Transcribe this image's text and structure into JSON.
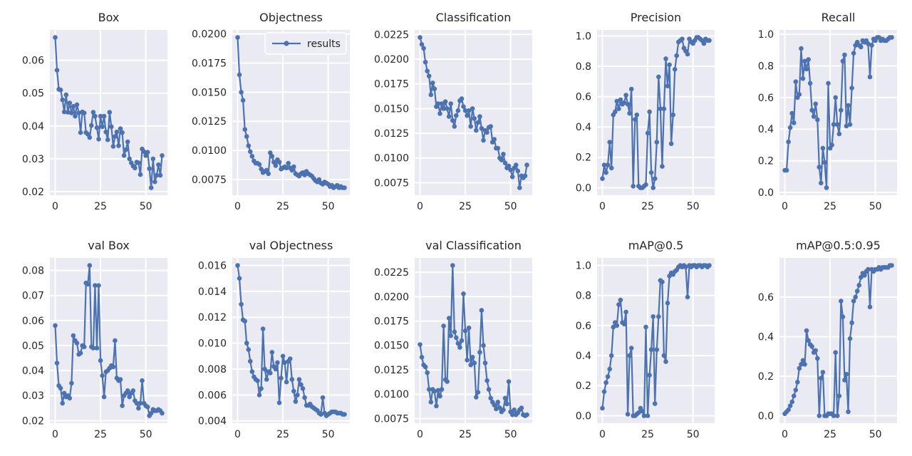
{
  "figure": {
    "background": "#ffffff",
    "axes_background": "#eaeaf2",
    "grid_color": "#ffffff",
    "line_color": "#4c72b0",
    "text_color": "#262626",
    "legend_label": "results"
  },
  "chart_data": [
    {
      "type": "line",
      "title": "Box",
      "series_name": "results",
      "has_legend": false,
      "xticks": [
        0,
        25,
        50
      ],
      "xtick_labels": [
        "0",
        "25",
        "50"
      ],
      "ytick_labels": [
        "0.02",
        "0.03",
        "0.04",
        "0.05",
        "0.06"
      ],
      "values": [
        0.067,
        0.057,
        0.0512,
        0.051,
        0.048,
        0.0443,
        0.0495,
        0.0442,
        0.047,
        0.044,
        0.046,
        0.043,
        0.0465,
        0.044,
        0.038,
        0.0443,
        0.044,
        0.038,
        0.0375,
        0.0365,
        0.0402,
        0.0442,
        0.043,
        0.0395,
        0.036,
        0.043,
        0.0398,
        0.043,
        0.0382,
        0.0358,
        0.0442,
        0.0398,
        0.0338,
        0.0368,
        0.0382,
        0.034,
        0.0392,
        0.038,
        0.031,
        0.0328,
        0.0352,
        0.03,
        0.0288,
        0.0278,
        0.0272,
        0.029,
        0.0288,
        0.0252,
        0.033,
        0.0322,
        0.031,
        0.032,
        0.027,
        0.0212,
        0.03,
        0.023,
        0.025,
        0.0282,
        0.025,
        0.031
      ]
    },
    {
      "type": "line",
      "title": "Objectness",
      "series_name": "results",
      "has_legend": true,
      "xticks": [
        0,
        25,
        50
      ],
      "xtick_labels": [
        "0",
        "25",
        "50"
      ],
      "ytick_labels": [
        "0.0075",
        "0.0100",
        "0.0125",
        "0.0150",
        "0.0175",
        "0.0200"
      ],
      "values": [
        0.0197,
        0.0165,
        0.015,
        0.0143,
        0.0118,
        0.0112,
        0.0104,
        0.0099,
        0.0095,
        0.0091,
        0.0089,
        0.0089,
        0.0088,
        0.0084,
        0.0081,
        0.0082,
        0.0083,
        0.008,
        0.0098,
        0.0095,
        0.009,
        0.0087,
        0.0092,
        0.009,
        0.0084,
        0.0085,
        0.0086,
        0.0085,
        0.0089,
        0.0085,
        0.0083,
        0.0086,
        0.008,
        0.0079,
        0.0078,
        0.008,
        0.0081,
        0.0079,
        0.0082,
        0.008,
        0.0079,
        0.0078,
        0.0076,
        0.0074,
        0.0073,
        0.0075,
        0.0072,
        0.0071,
        0.0073,
        0.0072,
        0.0071,
        0.0069,
        0.007,
        0.0068,
        0.0069,
        0.007,
        0.0068,
        0.0069,
        0.0068,
        0.0068
      ]
    },
    {
      "type": "line",
      "title": "Classification",
      "series_name": "results",
      "has_legend": false,
      "xticks": [
        0,
        25,
        50
      ],
      "xtick_labels": [
        "0",
        "25",
        "50"
      ],
      "ytick_labels": [
        "0.0075",
        "0.0100",
        "0.0125",
        "0.0150",
        "0.0175",
        "0.0200",
        "0.0225"
      ],
      "values": [
        0.0222,
        0.0215,
        0.0211,
        0.0197,
        0.0188,
        0.0183,
        0.0164,
        0.0176,
        0.017,
        0.0152,
        0.0155,
        0.0145,
        0.0155,
        0.015,
        0.0157,
        0.015,
        0.0142,
        0.0155,
        0.0138,
        0.0132,
        0.0143,
        0.0148,
        0.0158,
        0.016,
        0.0152,
        0.0148,
        0.0143,
        0.0148,
        0.0132,
        0.015,
        0.014,
        0.0128,
        0.0136,
        0.0142,
        0.013,
        0.0118,
        0.0128,
        0.0126,
        0.0131,
        0.0132,
        0.0116,
        0.0119,
        0.011,
        0.011,
        0.01,
        0.0098,
        0.0104,
        0.0095,
        0.009,
        0.0092,
        0.0088,
        0.0081,
        0.009,
        0.0093,
        0.0087,
        0.007,
        0.0082,
        0.008,
        0.0082,
        0.0093
      ]
    },
    {
      "type": "line",
      "title": "Precision",
      "series_name": "results",
      "has_legend": false,
      "xticks": [
        0,
        25,
        50
      ],
      "xtick_labels": [
        "0",
        "25",
        "50"
      ],
      "ytick_labels": [
        "0.0",
        "0.2",
        "0.4",
        "0.6",
        "0.8",
        "1.0"
      ],
      "values": [
        0.06,
        0.15,
        0.1,
        0.15,
        0.3,
        0.13,
        0.48,
        0.5,
        0.57,
        0.52,
        0.58,
        0.55,
        0.56,
        0.61,
        0.55,
        0.49,
        0.65,
        0.01,
        0.45,
        0.48,
        0.01,
        0.0,
        0.0,
        0.01,
        0.02,
        0.36,
        0.5,
        0.1,
        0.0,
        0.06,
        0.3,
        0.73,
        0.52,
        0.14,
        0.52,
        0.85,
        0.67,
        0.81,
        0.29,
        0.48,
        0.78,
        0.87,
        0.96,
        0.97,
        0.98,
        0.92,
        0.9,
        0.88,
        0.98,
        0.96,
        0.95,
        0.97,
        0.99,
        0.99,
        0.98,
        0.97,
        0.95,
        0.98,
        0.97,
        0.97
      ]
    },
    {
      "type": "line",
      "title": "Recall",
      "series_name": "results",
      "has_legend": false,
      "xticks": [
        0,
        25,
        50
      ],
      "xtick_labels": [
        "0",
        "25",
        "50"
      ],
      "ytick_labels": [
        "0.0",
        "0.2",
        "0.4",
        "0.6",
        "0.8",
        "1.0"
      ],
      "values": [
        0.14,
        0.14,
        0.32,
        0.41,
        0.5,
        0.44,
        0.7,
        0.6,
        0.62,
        0.91,
        0.72,
        0.83,
        0.78,
        0.84,
        0.69,
        0.52,
        0.48,
        0.56,
        0.46,
        0.16,
        0.06,
        0.28,
        0.19,
        0.03,
        0.69,
        0.28,
        0.3,
        0.43,
        0.6,
        0.43,
        0.37,
        0.52,
        0.83,
        0.87,
        0.42,
        0.55,
        0.43,
        0.66,
        0.88,
        0.93,
        0.95,
        0.93,
        0.92,
        0.96,
        0.95,
        0.96,
        0.94,
        0.73,
        0.93,
        0.97,
        0.96,
        0.98,
        0.98,
        0.96,
        0.97,
        0.96,
        0.96,
        0.97,
        0.98,
        0.98
      ]
    },
    {
      "type": "line",
      "title": "val Box",
      "series_name": "results",
      "has_legend": false,
      "xticks": [
        0,
        25,
        50
      ],
      "xtick_labels": [
        "0",
        "25",
        "50"
      ],
      "ytick_labels": [
        "0.02",
        "0.03",
        "0.04",
        "0.05",
        "0.06",
        "0.07",
        "0.08"
      ],
      "values": [
        0.058,
        0.043,
        0.034,
        0.033,
        0.027,
        0.031,
        0.0295,
        0.03,
        0.029,
        0.035,
        0.054,
        0.052,
        0.051,
        0.0465,
        0.047,
        0.05,
        0.0495,
        0.075,
        0.0745,
        0.082,
        0.0495,
        0.049,
        0.074,
        0.049,
        0.074,
        0.044,
        0.038,
        0.0295,
        0.0395,
        0.04,
        0.041,
        0.042,
        0.0415,
        0.052,
        0.037,
        0.036,
        0.0365,
        0.026,
        0.03,
        0.031,
        0.032,
        0.0295,
        0.031,
        0.032,
        0.028,
        0.027,
        0.025,
        0.027,
        0.036,
        0.027,
        0.026,
        0.0255,
        0.022,
        0.023,
        0.0245,
        0.024,
        0.024,
        0.0245,
        0.024,
        0.023
      ]
    },
    {
      "type": "line",
      "title": "val Objectness",
      "series_name": "results",
      "has_legend": false,
      "xticks": [
        0,
        25,
        50
      ],
      "xtick_labels": [
        "0",
        "25",
        "50"
      ],
      "ytick_labels": [
        "0.004",
        "0.006",
        "0.008",
        "0.010",
        "0.012",
        "0.014",
        "0.016"
      ],
      "values": [
        0.016,
        0.015,
        0.013,
        0.0118,
        0.0117,
        0.01,
        0.0095,
        0.0086,
        0.0078,
        0.0074,
        0.0072,
        0.0071,
        0.006,
        0.0065,
        0.0111,
        0.008,
        0.0072,
        0.0078,
        0.0077,
        0.0093,
        0.0082,
        0.008,
        0.0085,
        0.0054,
        0.0073,
        0.009,
        0.0085,
        0.007,
        0.0086,
        0.0088,
        0.0072,
        0.0063,
        0.0055,
        0.006,
        0.0072,
        0.0068,
        0.0065,
        0.0058,
        0.0052,
        0.0052,
        0.0053,
        0.0051,
        0.005,
        0.0049,
        0.0048,
        0.0046,
        0.0045,
        0.0058,
        0.0046,
        0.0044,
        0.0045,
        0.0046,
        0.0047,
        0.0047,
        0.0047,
        0.0046,
        0.0046,
        0.0046,
        0.0045,
        0.0045
      ]
    },
    {
      "type": "line",
      "title": "val Classification",
      "series_name": "results",
      "has_legend": false,
      "xticks": [
        0,
        25,
        50
      ],
      "xtick_labels": [
        "0",
        "25",
        "50"
      ],
      "ytick_labels": [
        "0.0075",
        "0.0100",
        "0.0125",
        "0.0150",
        "0.0175",
        "0.0200",
        "0.0225"
      ],
      "values": [
        0.0151,
        0.0138,
        0.013,
        0.0128,
        0.0122,
        0.0105,
        0.0092,
        0.0105,
        0.0103,
        0.0088,
        0.0104,
        0.0098,
        0.0105,
        0.017,
        0.0115,
        0.0113,
        0.0178,
        0.016,
        0.0232,
        0.0164,
        0.0158,
        0.0152,
        0.0148,
        0.0155,
        0.0203,
        0.0165,
        0.0135,
        0.0168,
        0.013,
        0.0138,
        0.0132,
        0.0097,
        0.0102,
        0.0143,
        0.0186,
        0.015,
        0.0132,
        0.0114,
        0.0105,
        0.0096,
        0.0092,
        0.0089,
        0.0085,
        0.0092,
        0.0086,
        0.0082,
        0.0084,
        0.0096,
        0.009,
        0.0113,
        0.0082,
        0.0079,
        0.0084,
        0.0079,
        0.0081,
        0.0084,
        0.0086,
        0.0079,
        0.0078,
        0.0079
      ]
    },
    {
      "type": "line",
      "title": "mAP@0.5",
      "series_name": "results",
      "has_legend": false,
      "xticks": [
        0,
        25,
        50
      ],
      "xtick_labels": [
        "0",
        "25",
        "50"
      ],
      "ytick_labels": [
        "0.0",
        "0.2",
        "0.4",
        "0.6",
        "0.8",
        "1.0"
      ],
      "values": [
        0.05,
        0.16,
        0.22,
        0.26,
        0.31,
        0.4,
        0.59,
        0.62,
        0.6,
        0.74,
        0.77,
        0.62,
        0.61,
        0.69,
        0.01,
        0.4,
        0.45,
        0.0,
        0.0,
        0.01,
        0.02,
        0.05,
        0.03,
        0.0,
        0.59,
        0.0,
        0.27,
        0.44,
        0.66,
        0.08,
        0.44,
        0.66,
        0.9,
        0.89,
        0.4,
        0.36,
        0.75,
        0.93,
        0.95,
        0.94,
        0.96,
        0.97,
        0.99,
        1.0,
        0.99,
        1.0,
        0.99,
        0.79,
        1.0,
        0.99,
        1.0,
        1.0,
        0.99,
        1.0,
        1.0,
        0.99,
        1.0,
        1.0,
        0.99,
        1.0
      ]
    },
    {
      "type": "line",
      "title": "mAP@0.5:0.95",
      "series_name": "results",
      "has_legend": false,
      "xticks": [
        0,
        25,
        50
      ],
      "xtick_labels": [
        "0",
        "25",
        "50"
      ],
      "ytick_labels": [
        "0.0",
        "0.2",
        "0.4",
        "0.6"
      ],
      "values": [
        0.01,
        0.02,
        0.03,
        0.05,
        0.07,
        0.1,
        0.13,
        0.17,
        0.24,
        0.26,
        0.28,
        0.26,
        0.43,
        0.38,
        0.36,
        0.35,
        0.32,
        0.33,
        0.29,
        0.0,
        0.19,
        0.22,
        0.0,
        0.0,
        0.01,
        0.01,
        0.01,
        0.0,
        0.32,
        0.0,
        0.1,
        0.58,
        0.5,
        0.18,
        0.21,
        0.02,
        0.39,
        0.47,
        0.58,
        0.6,
        0.63,
        0.66,
        0.7,
        0.72,
        0.71,
        0.73,
        0.74,
        0.55,
        0.74,
        0.73,
        0.74,
        0.74,
        0.75,
        0.74,
        0.75,
        0.75,
        0.75,
        0.75,
        0.76,
        0.76
      ]
    }
  ]
}
